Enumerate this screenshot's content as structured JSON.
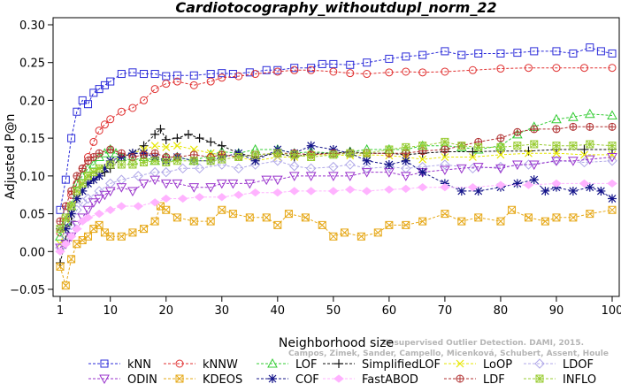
{
  "chart_data": {
    "type": "line",
    "title": "Cardiotocography_withoutdupl_norm_22",
    "xlabel": "Neighborhood size",
    "ylabel": "Adjusted P@n",
    "xlim": [
      1,
      100
    ],
    "ylim": [
      -0.05,
      0.3
    ],
    "xticks": [
      1,
      10,
      20,
      30,
      40,
      50,
      60,
      70,
      80,
      90,
      100
    ],
    "yticks": [
      -0.05,
      0.0,
      0.05,
      0.1,
      0.15,
      0.2,
      0.25,
      0.3
    ],
    "ytick_labels": [
      "−0.05",
      "0.00",
      "0.05",
      "0.10",
      "0.15",
      "0.20",
      "0.25",
      "0.30"
    ],
    "grid": false,
    "legend_position": "bottom",
    "watermark": [
      "Campos, Zimek, Sander, Campello, Micenková, Schubert, Assent, Houle",
      "Unsupervised Outlier Detection. DAMI, 2015."
    ],
    "series": [
      {
        "name": "kNN",
        "color": "#2b2bd9",
        "marker": "square",
        "x": [
          1,
          2,
          3,
          4,
          5,
          6,
          7,
          8,
          9,
          10,
          12,
          14,
          16,
          18,
          20,
          22,
          25,
          28,
          30,
          32,
          35,
          38,
          40,
          43,
          46,
          48,
          50,
          53,
          56,
          60,
          63,
          66,
          70,
          73,
          76,
          80,
          83,
          86,
          90,
          93,
          96,
          98,
          100
        ],
        "y": [
          0.055,
          0.095,
          0.15,
          0.185,
          0.2,
          0.195,
          0.21,
          0.215,
          0.22,
          0.225,
          0.235,
          0.237,
          0.235,
          0.235,
          0.232,
          0.233,
          0.233,
          0.235,
          0.236,
          0.235,
          0.237,
          0.24,
          0.24,
          0.243,
          0.243,
          0.248,
          0.248,
          0.247,
          0.25,
          0.255,
          0.258,
          0.26,
          0.265,
          0.26,
          0.262,
          0.262,
          0.263,
          0.265,
          0.265,
          0.262,
          0.27,
          0.265,
          0.262
        ]
      },
      {
        "name": "kNNW",
        "color": "#e03030",
        "marker": "circle",
        "x": [
          1,
          2,
          3,
          4,
          5,
          6,
          7,
          8,
          9,
          10,
          12,
          14,
          16,
          18,
          20,
          22,
          25,
          28,
          30,
          33,
          36,
          40,
          43,
          46,
          50,
          53,
          56,
          60,
          63,
          66,
          70,
          75,
          80,
          85,
          90,
          95,
          100
        ],
        "y": [
          0.025,
          0.04,
          0.075,
          0.09,
          0.11,
          0.125,
          0.145,
          0.16,
          0.168,
          0.175,
          0.185,
          0.19,
          0.2,
          0.215,
          0.222,
          0.225,
          0.22,
          0.225,
          0.23,
          0.232,
          0.235,
          0.238,
          0.24,
          0.24,
          0.238,
          0.236,
          0.235,
          0.237,
          0.238,
          0.237,
          0.238,
          0.24,
          0.242,
          0.243,
          0.243,
          0.243,
          0.243
        ]
      },
      {
        "name": "LOF",
        "color": "#33cc33",
        "marker": "triangle",
        "x": [
          1,
          2,
          3,
          4,
          5,
          6,
          7,
          8,
          9,
          10,
          11,
          12,
          14,
          16,
          18,
          20,
          22,
          25,
          28,
          30,
          33,
          36,
          40,
          43,
          46,
          50,
          53,
          56,
          60,
          63,
          66,
          70,
          73,
          76,
          80,
          83,
          86,
          90,
          93,
          96,
          100
        ],
        "y": [
          0.02,
          0.04,
          0.06,
          0.09,
          0.1,
          0.11,
          0.115,
          0.125,
          0.13,
          0.135,
          0.13,
          0.125,
          0.12,
          0.125,
          0.12,
          0.125,
          0.125,
          0.12,
          0.128,
          0.132,
          0.13,
          0.135,
          0.135,
          0.13,
          0.132,
          0.13,
          0.132,
          0.135,
          0.135,
          0.135,
          0.14,
          0.14,
          0.138,
          0.135,
          0.14,
          0.155,
          0.165,
          0.175,
          0.178,
          0.182,
          0.18
        ]
      },
      {
        "name": "SimplifiedLOF",
        "color": "#111111",
        "marker": "plus",
        "x": [
          1,
          2,
          3,
          4,
          5,
          6,
          7,
          8,
          9,
          10,
          12,
          14,
          16,
          18,
          19,
          20,
          22,
          24,
          26,
          28,
          30,
          33,
          36,
          40,
          43,
          46,
          50,
          53,
          56,
          60,
          63,
          66,
          70,
          75,
          80,
          85,
          90,
          95,
          100
        ],
        "y": [
          -0.015,
          0.015,
          0.04,
          0.07,
          0.08,
          0.09,
          0.095,
          0.1,
          0.105,
          0.11,
          0.125,
          0.13,
          0.14,
          0.155,
          0.162,
          0.148,
          0.15,
          0.155,
          0.15,
          0.145,
          0.14,
          0.13,
          0.125,
          0.13,
          0.125,
          0.13,
          0.13,
          0.132,
          0.13,
          0.13,
          0.128,
          0.13,
          0.132,
          0.132,
          0.133,
          0.133,
          0.135,
          0.135,
          0.135
        ]
      },
      {
        "name": "LoOP",
        "color": "#e6e600",
        "marker": "x",
        "x": [
          1,
          2,
          3,
          4,
          5,
          6,
          7,
          8,
          10,
          12,
          14,
          16,
          18,
          20,
          22,
          25,
          28,
          30,
          33,
          36,
          40,
          43,
          46,
          50,
          53,
          56,
          60,
          63,
          66,
          70,
          75,
          80,
          85,
          90,
          95,
          100
        ],
        "y": [
          0.01,
          0.03,
          0.05,
          0.07,
          0.09,
          0.1,
          0.105,
          0.11,
          0.12,
          0.125,
          0.13,
          0.135,
          0.14,
          0.138,
          0.14,
          0.135,
          0.13,
          0.128,
          0.125,
          0.12,
          0.125,
          0.125,
          0.128,
          0.128,
          0.127,
          0.128,
          0.127,
          0.125,
          0.122,
          0.125,
          0.125,
          0.128,
          0.13,
          0.13,
          0.128,
          0.128
        ]
      },
      {
        "name": "LDOF",
        "color": "#b0a8e8",
        "marker": "diamond",
        "x": [
          1,
          2,
          3,
          4,
          5,
          6,
          8,
          10,
          12,
          15,
          18,
          20,
          23,
          26,
          30,
          33,
          36,
          40,
          43,
          46,
          50,
          53,
          56,
          60,
          63,
          66,
          70,
          75,
          80,
          85,
          90,
          95,
          100
        ],
        "y": [
          0.005,
          0.02,
          0.035,
          0.055,
          0.065,
          0.07,
          0.08,
          0.09,
          0.095,
          0.1,
          0.105,
          0.105,
          0.11,
          0.11,
          0.115,
          0.11,
          0.115,
          0.12,
          0.113,
          0.11,
          0.112,
          0.115,
          0.11,
          0.112,
          0.11,
          0.112,
          0.115,
          0.11,
          0.112,
          0.115,
          0.12,
          0.118,
          0.12
        ]
      },
      {
        "name": "ODIN",
        "color": "#9933cc",
        "marker": "triangle-down",
        "x": [
          1,
          2,
          3,
          4,
          5,
          6,
          7,
          8,
          9,
          10,
          12,
          14,
          16,
          18,
          20,
          22,
          25,
          28,
          30,
          32,
          35,
          38,
          40,
          43,
          46,
          50,
          53,
          56,
          60,
          63,
          66,
          70,
          73,
          76,
          80,
          83,
          86,
          90,
          93,
          96,
          100
        ],
        "y": [
          0.005,
          0.01,
          0.02,
          0.035,
          0.045,
          0.055,
          0.065,
          0.07,
          0.075,
          0.08,
          0.085,
          0.08,
          0.09,
          0.095,
          0.09,
          0.09,
          0.085,
          0.085,
          0.09,
          0.09,
          0.09,
          0.095,
          0.095,
          0.1,
          0.1,
          0.1,
          0.1,
          0.105,
          0.105,
          0.1,
          0.105,
          0.108,
          0.11,
          0.112,
          0.11,
          0.115,
          0.115,
          0.12,
          0.12,
          0.122,
          0.125
        ]
      },
      {
        "name": "KDEOS",
        "color": "#e6a817",
        "marker": "square-x",
        "x": [
          1,
          2,
          3,
          4,
          5,
          6,
          7,
          8,
          9,
          10,
          12,
          14,
          16,
          18,
          19,
          20,
          22,
          25,
          28,
          30,
          32,
          35,
          38,
          40,
          42,
          45,
          48,
          50,
          52,
          55,
          58,
          60,
          63,
          66,
          70,
          73,
          76,
          80,
          82,
          85,
          88,
          90,
          93,
          96,
          100
        ],
        "y": [
          -0.02,
          -0.045,
          -0.01,
          0.01,
          0.015,
          0.02,
          0.03,
          0.035,
          0.025,
          0.02,
          0.02,
          0.025,
          0.03,
          0.04,
          0.06,
          0.055,
          0.045,
          0.04,
          0.04,
          0.055,
          0.05,
          0.045,
          0.045,
          0.035,
          0.05,
          0.045,
          0.035,
          0.02,
          0.025,
          0.02,
          0.025,
          0.035,
          0.035,
          0.04,
          0.05,
          0.04,
          0.045,
          0.04,
          0.055,
          0.045,
          0.04,
          0.045,
          0.045,
          0.05,
          0.055
        ]
      },
      {
        "name": "COF",
        "color": "#14148a",
        "marker": "asterisk",
        "x": [
          1,
          2,
          3,
          4,
          5,
          6,
          7,
          8,
          9,
          10,
          12,
          14,
          16,
          18,
          20,
          22,
          25,
          28,
          30,
          33,
          36,
          40,
          43,
          46,
          50,
          53,
          56,
          60,
          63,
          66,
          70,
          73,
          76,
          80,
          83,
          86,
          88,
          90,
          93,
          96,
          98,
          100
        ],
        "y": [
          0.03,
          0.03,
          0.05,
          0.07,
          0.08,
          0.09,
          0.095,
          0.1,
          0.11,
          0.12,
          0.125,
          0.13,
          0.13,
          0.125,
          0.12,
          0.125,
          0.12,
          0.12,
          0.125,
          0.13,
          0.12,
          0.135,
          0.13,
          0.14,
          0.135,
          0.13,
          0.12,
          0.115,
          0.12,
          0.105,
          0.09,
          0.08,
          0.08,
          0.085,
          0.09,
          0.095,
          0.08,
          0.085,
          0.08,
          0.085,
          0.08,
          0.07
        ]
      },
      {
        "name": "FastABOD",
        "color": "#ffb3ff",
        "marker": "diamond-filled",
        "x": [
          1,
          2,
          3,
          4,
          5,
          6,
          8,
          10,
          12,
          15,
          18,
          20,
          23,
          26,
          30,
          33,
          36,
          40,
          43,
          46,
          50,
          53,
          56,
          60,
          63,
          66,
          70,
          75,
          80,
          85,
          90,
          95,
          100
        ],
        "y": [
          0.0,
          0.01,
          0.02,
          0.03,
          0.04,
          0.045,
          0.05,
          0.055,
          0.06,
          0.06,
          0.065,
          0.07,
          0.07,
          0.072,
          0.072,
          0.075,
          0.078,
          0.078,
          0.08,
          0.08,
          0.08,
          0.082,
          0.08,
          0.082,
          0.083,
          0.085,
          0.085,
          0.085,
          0.088,
          0.088,
          0.09,
          0.09,
          0.09
        ]
      },
      {
        "name": "LDF",
        "color": "#b03030",
        "marker": "circle-plus",
        "x": [
          1,
          2,
          3,
          4,
          5,
          6,
          7,
          8,
          10,
          12,
          14,
          16,
          18,
          20,
          22,
          25,
          28,
          30,
          33,
          36,
          40,
          43,
          46,
          50,
          53,
          56,
          60,
          63,
          66,
          70,
          73,
          76,
          80,
          83,
          86,
          90,
          93,
          96,
          100
        ],
        "y": [
          0.04,
          0.06,
          0.08,
          0.1,
          0.11,
          0.12,
          0.125,
          0.13,
          0.135,
          0.13,
          0.125,
          0.128,
          0.13,
          0.125,
          0.125,
          0.128,
          0.125,
          0.128,
          0.125,
          0.128,
          0.13,
          0.13,
          0.128,
          0.13,
          0.13,
          0.13,
          0.13,
          0.13,
          0.133,
          0.135,
          0.14,
          0.145,
          0.15,
          0.158,
          0.162,
          0.162,
          0.165,
          0.165,
          0.165
        ]
      },
      {
        "name": "INFLO",
        "color": "#99cc33",
        "marker": "square-star",
        "x": [
          1,
          2,
          3,
          4,
          5,
          6,
          7,
          8,
          10,
          12,
          14,
          16,
          18,
          20,
          22,
          25,
          28,
          30,
          33,
          36,
          40,
          43,
          46,
          50,
          53,
          56,
          60,
          63,
          66,
          70,
          73,
          76,
          80,
          83,
          86,
          90,
          93,
          96,
          100
        ],
        "y": [
          0.03,
          0.045,
          0.06,
          0.08,
          0.09,
          0.1,
          0.105,
          0.11,
          0.115,
          0.115,
          0.115,
          0.118,
          0.12,
          0.118,
          0.12,
          0.12,
          0.12,
          0.122,
          0.125,
          0.128,
          0.13,
          0.128,
          0.125,
          0.128,
          0.13,
          0.13,
          0.135,
          0.138,
          0.14,
          0.145,
          0.14,
          0.138,
          0.138,
          0.14,
          0.142,
          0.14,
          0.14,
          0.142,
          0.14
        ]
      }
    ]
  }
}
